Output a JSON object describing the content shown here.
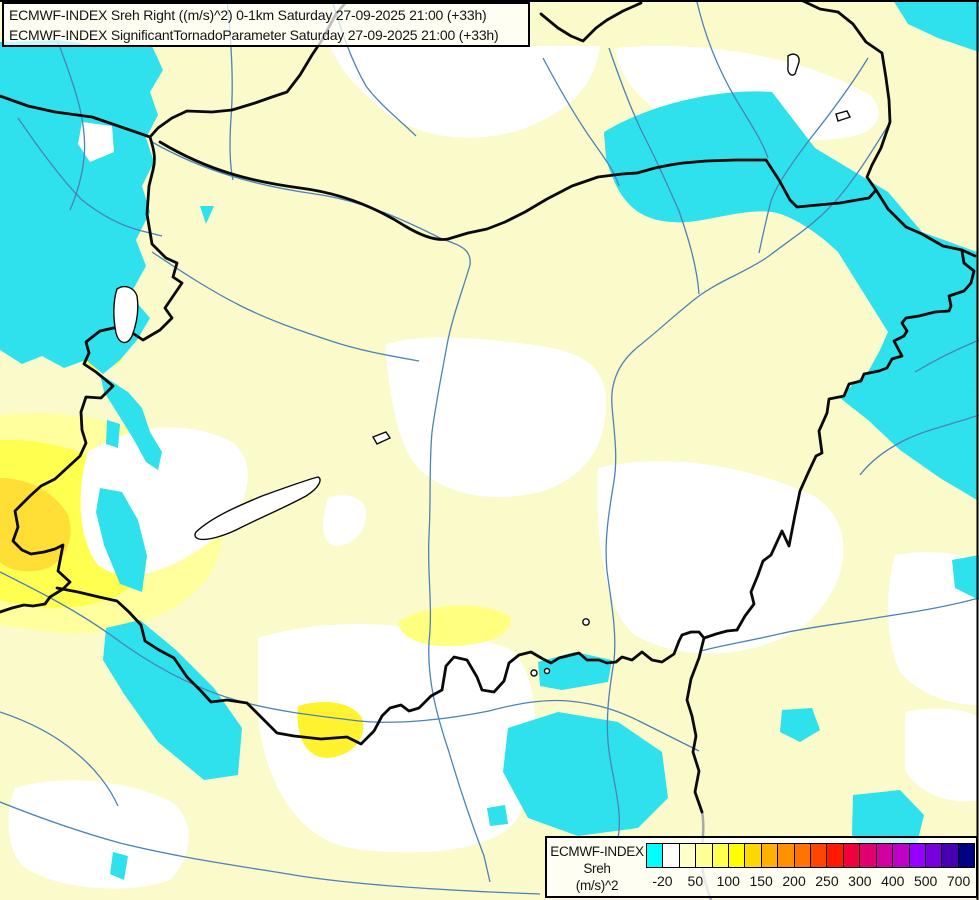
{
  "title_box": {
    "line1": "ECMWF-INDEX Sreh Right ((m/s)^2) 0-1km Saturday 27-09-2025 21:00 (+33h)",
    "line2": "ECMWF-INDEX SignificantTornadoParameter Saturday 27-09-2025 21:00 (+33h)"
  },
  "legend": {
    "title": "ECMWF-INDEX",
    "subtitle": "Sreh",
    "units": "(m/s)^2",
    "tick_labels": [
      "-20",
      "50",
      "100",
      "150",
      "200",
      "250",
      "300",
      "400",
      "500",
      "700"
    ],
    "colors": [
      "#00FFFF",
      "#FFFFFF",
      "#FFFFC8",
      "#FFFF96",
      "#FFFF50",
      "#FFFF00",
      "#FFD800",
      "#FFB000",
      "#FF9100",
      "#FF7300",
      "#FF4600",
      "#FF1900",
      "#F0003C",
      "#E1006E",
      "#D200A0",
      "#BE00C8",
      "#9600FF",
      "#7800DC",
      "#4600AF",
      "#000082"
    ]
  },
  "map_colors": {
    "background_pale_yellow": "#FAFACB",
    "negative_cyan": "#2EE1EC",
    "white_zone": "#FFFFFF",
    "light_yellow_zone": "#FFFF9E",
    "bright_yellow_zone": "#FFFF4F",
    "gold_zone": "#FFDF35",
    "river_blue": "#4C82B8",
    "border_black": "#0A0A0A",
    "border_gray": "#A8A8A8"
  }
}
